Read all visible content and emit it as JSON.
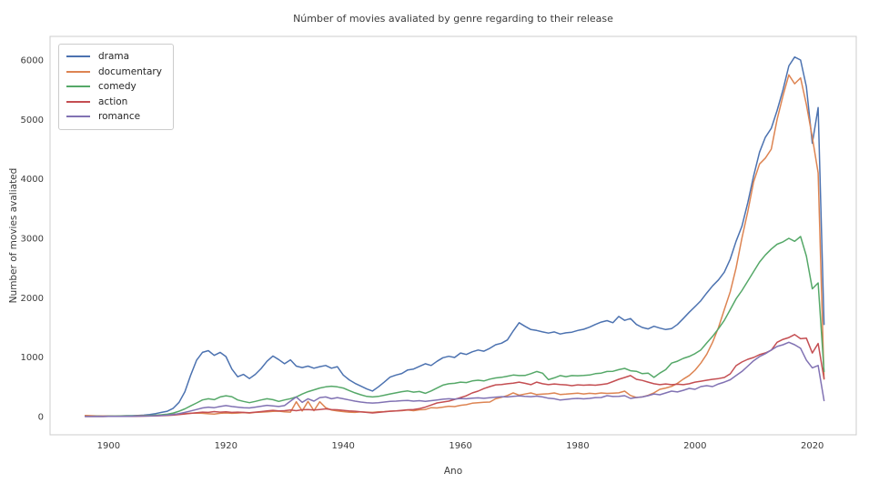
{
  "figure": {
    "title": "Númber of movies avaliated by genre regarding to their release",
    "xlabel": "Ano",
    "ylabel": "Number of movies avaliated"
  },
  "chart_data": {
    "type": "line",
    "title": "Númber of movies avaliated by genre regarding to their release",
    "xlabel": "Ano",
    "ylabel": "Number of movies avaliated",
    "grid": false,
    "legend_position": "upper-left",
    "x_ticks": [
      1900,
      1920,
      1940,
      1960,
      1980,
      2000,
      2020
    ],
    "y_ticks": [
      0,
      1000,
      2000,
      3000,
      4000,
      5000,
      6000
    ],
    "xlim": [
      1890,
      2027.5
    ],
    "ylim": [
      -306,
      6398
    ],
    "years": [
      1896,
      1897,
      1898,
      1899,
      1900,
      1901,
      1902,
      1903,
      1904,
      1905,
      1906,
      1907,
      1908,
      1909,
      1910,
      1911,
      1912,
      1913,
      1914,
      1915,
      1916,
      1917,
      1918,
      1919,
      1920,
      1921,
      1922,
      1923,
      1924,
      1925,
      1926,
      1927,
      1928,
      1929,
      1930,
      1931,
      1932,
      1933,
      1934,
      1935,
      1936,
      1937,
      1938,
      1939,
      1940,
      1941,
      1942,
      1943,
      1944,
      1945,
      1946,
      1947,
      1948,
      1949,
      1950,
      1951,
      1952,
      1953,
      1954,
      1955,
      1956,
      1957,
      1958,
      1959,
      1960,
      1961,
      1962,
      1963,
      1964,
      1965,
      1966,
      1967,
      1968,
      1969,
      1970,
      1971,
      1972,
      1973,
      1974,
      1975,
      1976,
      1977,
      1978,
      1979,
      1980,
      1981,
      1982,
      1983,
      1984,
      1985,
      1986,
      1987,
      1988,
      1989,
      1990,
      1991,
      1992,
      1993,
      1994,
      1995,
      1996,
      1997,
      1998,
      1999,
      2000,
      2001,
      2002,
      2003,
      2004,
      2005,
      2006,
      2007,
      2008,
      2009,
      2010,
      2011,
      2012,
      2013,
      2014,
      2015,
      2016,
      2017,
      2018,
      2019,
      2020,
      2021,
      2022
    ],
    "series": [
      {
        "name": "drama",
        "color": "#4C72B0",
        "values": [
          8,
          10,
          12,
          8,
          10,
          8,
          12,
          15,
          15,
          20,
          25,
          35,
          50,
          70,
          90,
          140,
          240,
          420,
          700,
          950,
          1080,
          1110,
          1030,
          1080,
          1010,
          800,
          670,
          710,
          640,
          710,
          810,
          930,
          1020,
          960,
          890,
          955,
          850,
          825,
          850,
          815,
          840,
          860,
          815,
          840,
          700,
          620,
          560,
          515,
          465,
          430,
          500,
          580,
          665,
          700,
          725,
          785,
          800,
          845,
          890,
          860,
          930,
          990,
          1015,
          995,
          1070,
          1045,
          1090,
          1120,
          1100,
          1150,
          1210,
          1235,
          1290,
          1440,
          1580,
          1520,
          1465,
          1450,
          1425,
          1405,
          1425,
          1390,
          1410,
          1420,
          1450,
          1470,
          1505,
          1550,
          1590,
          1615,
          1580,
          1685,
          1620,
          1650,
          1550,
          1500,
          1475,
          1520,
          1490,
          1465,
          1480,
          1550,
          1650,
          1755,
          1850,
          1950,
          2080,
          2200,
          2300,
          2430,
          2650,
          2950,
          3200,
          3600,
          4050,
          4450,
          4700,
          4850,
          5150,
          5500,
          5900,
          6050,
          6000,
          5550,
          4600,
          5200,
          1550
        ]
      },
      {
        "name": "documentary",
        "color": "#DD8452",
        "values": [
          20,
          15,
          12,
          10,
          10,
          8,
          10,
          12,
          12,
          15,
          15,
          18,
          22,
          28,
          32,
          38,
          45,
          50,
          55,
          60,
          55,
          48,
          42,
          55,
          62,
          55,
          60,
          68,
          60,
          70,
          75,
          82,
          88,
          92,
          82,
          75,
          250,
          95,
          255,
          100,
          250,
          150,
          110,
          95,
          85,
          75,
          70,
          82,
          75,
          70,
          80,
          85,
          92,
          95,
          100,
          110,
          100,
          115,
          120,
          150,
          145,
          160,
          175,
          168,
          190,
          200,
          225,
          235,
          240,
          245,
          300,
          325,
          355,
          400,
          360,
          380,
          398,
          370,
          380,
          385,
          398,
          372,
          378,
          388,
          395,
          382,
          392,
          385,
          398,
          390,
          395,
          400,
          428,
          355,
          322,
          330,
          358,
          400,
          460,
          480,
          508,
          560,
          630,
          692,
          780,
          900,
          1050,
          1250,
          1500,
          1800,
          2100,
          2500,
          3000,
          3450,
          3950,
          4250,
          4350,
          4500,
          5000,
          5400,
          5750,
          5600,
          5700,
          5250,
          4700,
          4100,
          630
        ]
      },
      {
        "name": "comedy",
        "color": "#55A868",
        "values": [
          5,
          5,
          8,
          5,
          8,
          8,
          10,
          10,
          12,
          12,
          15,
          18,
          25,
          30,
          40,
          60,
          90,
          130,
          180,
          230,
          280,
          300,
          285,
          330,
          350,
          335,
          280,
          255,
          235,
          255,
          280,
          300,
          285,
          255,
          280,
          302,
          330,
          380,
          420,
          450,
          480,
          500,
          512,
          500,
          480,
          440,
          400,
          368,
          340,
          330,
          340,
          360,
          382,
          400,
          420,
          432,
          412,
          422,
          392,
          432,
          480,
          530,
          552,
          560,
          580,
          572,
          600,
          612,
          600,
          630,
          650,
          662,
          680,
          700,
          690,
          692,
          722,
          760,
          730,
          622,
          652,
          690,
          672,
          690,
          688,
          692,
          700,
          722,
          732,
          760,
          762,
          790,
          812,
          772,
          762,
          722,
          732,
          660,
          732,
          790,
          900,
          932,
          980,
          1012,
          1060,
          1122,
          1240,
          1350,
          1480,
          1620,
          1800,
          1980,
          2120,
          2280,
          2440,
          2600,
          2720,
          2820,
          2900,
          2940,
          3000,
          2950,
          3030,
          2700,
          2150,
          2250,
          760
        ]
      },
      {
        "name": "action",
        "color": "#C44E52",
        "values": [
          2,
          2,
          3,
          2,
          3,
          3,
          4,
          5,
          5,
          6,
          8,
          10,
          12,
          15,
          18,
          25,
          35,
          45,
          55,
          65,
          75,
          70,
          85,
          75,
          80,
          70,
          75,
          70,
          65,
          75,
          85,
          95,
          105,
          95,
          100,
          110,
          100,
          115,
          120,
          110,
          120,
          130,
          120,
          115,
          105,
          95,
          90,
          80,
          70,
          62,
          70,
          80,
          90,
          95,
          105,
          115,
          120,
          135,
          160,
          195,
          230,
          245,
          260,
          290,
          320,
          350,
          398,
          428,
          472,
          505,
          535,
          540,
          552,
          562,
          580,
          560,
          538,
          580,
          552,
          538,
          550,
          540,
          535,
          520,
          535,
          528,
          535,
          528,
          540,
          552,
          590,
          628,
          658,
          690,
          628,
          610,
          580,
          552,
          538,
          550,
          538,
          545,
          538,
          552,
          580,
          595,
          612,
          628,
          640,
          658,
          720,
          858,
          918,
          965,
          995,
          1042,
          1072,
          1118,
          1250,
          1300,
          1330,
          1380,
          1310,
          1320,
          1070,
          1230,
          640
        ]
      },
      {
        "name": "romance",
        "color": "#8172B3",
        "values": [
          2,
          2,
          3,
          2,
          3,
          3,
          5,
          5,
          6,
          8,
          10,
          12,
          15,
          20,
          25,
          35,
          50,
          70,
          95,
          120,
          145,
          160,
          150,
          170,
          185,
          170,
          160,
          150,
          145,
          160,
          175,
          190,
          180,
          170,
          185,
          260,
          330,
          240,
          300,
          260,
          320,
          330,
          300,
          320,
          300,
          280,
          260,
          245,
          235,
          228,
          235,
          245,
          255,
          260,
          268,
          272,
          260,
          268,
          255,
          268,
          280,
          292,
          300,
          295,
          305,
          300,
          310,
          315,
          308,
          318,
          328,
          335,
          330,
          340,
          348,
          340,
          335,
          345,
          330,
          310,
          300,
          278,
          290,
          300,
          306,
          298,
          306,
          320,
          322,
          352,
          338,
          342,
          352,
          306,
          322,
          330,
          352,
          382,
          368,
          398,
          428,
          415,
          442,
          474,
          460,
          505,
          520,
          505,
          550,
          580,
          620,
          690,
          760,
          850,
          940,
          1010,
          1060,
          1120,
          1180,
          1210,
          1250,
          1210,
          1150,
          950,
          820,
          860,
          270
        ]
      }
    ]
  }
}
